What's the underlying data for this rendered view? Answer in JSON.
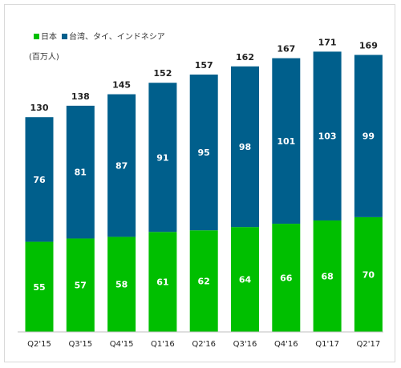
{
  "chart_data": {
    "type": "bar",
    "stacked": true,
    "unit_label": "(百万人)",
    "categories": [
      "Q2'15",
      "Q3'15",
      "Q4'15",
      "Q1'16",
      "Q2'16",
      "Q3'16",
      "Q4'16",
      "Q1'17",
      "Q2'17"
    ],
    "series": [
      {
        "name": "日本",
        "color": "#00bf00",
        "values": [
          55,
          57,
          58,
          61,
          62,
          64,
          66,
          68,
          70
        ]
      },
      {
        "name": "台湾、タイ、インドネシア",
        "color": "#005f8c",
        "values": [
          76,
          81,
          87,
          91,
          95,
          98,
          101,
          103,
          99
        ]
      }
    ],
    "totals": [
      130,
      138,
      145,
      152,
      157,
      162,
      167,
      171,
      169
    ],
    "ylim": [
      0,
      180
    ],
    "legend_position": "top-left",
    "grid": false
  }
}
